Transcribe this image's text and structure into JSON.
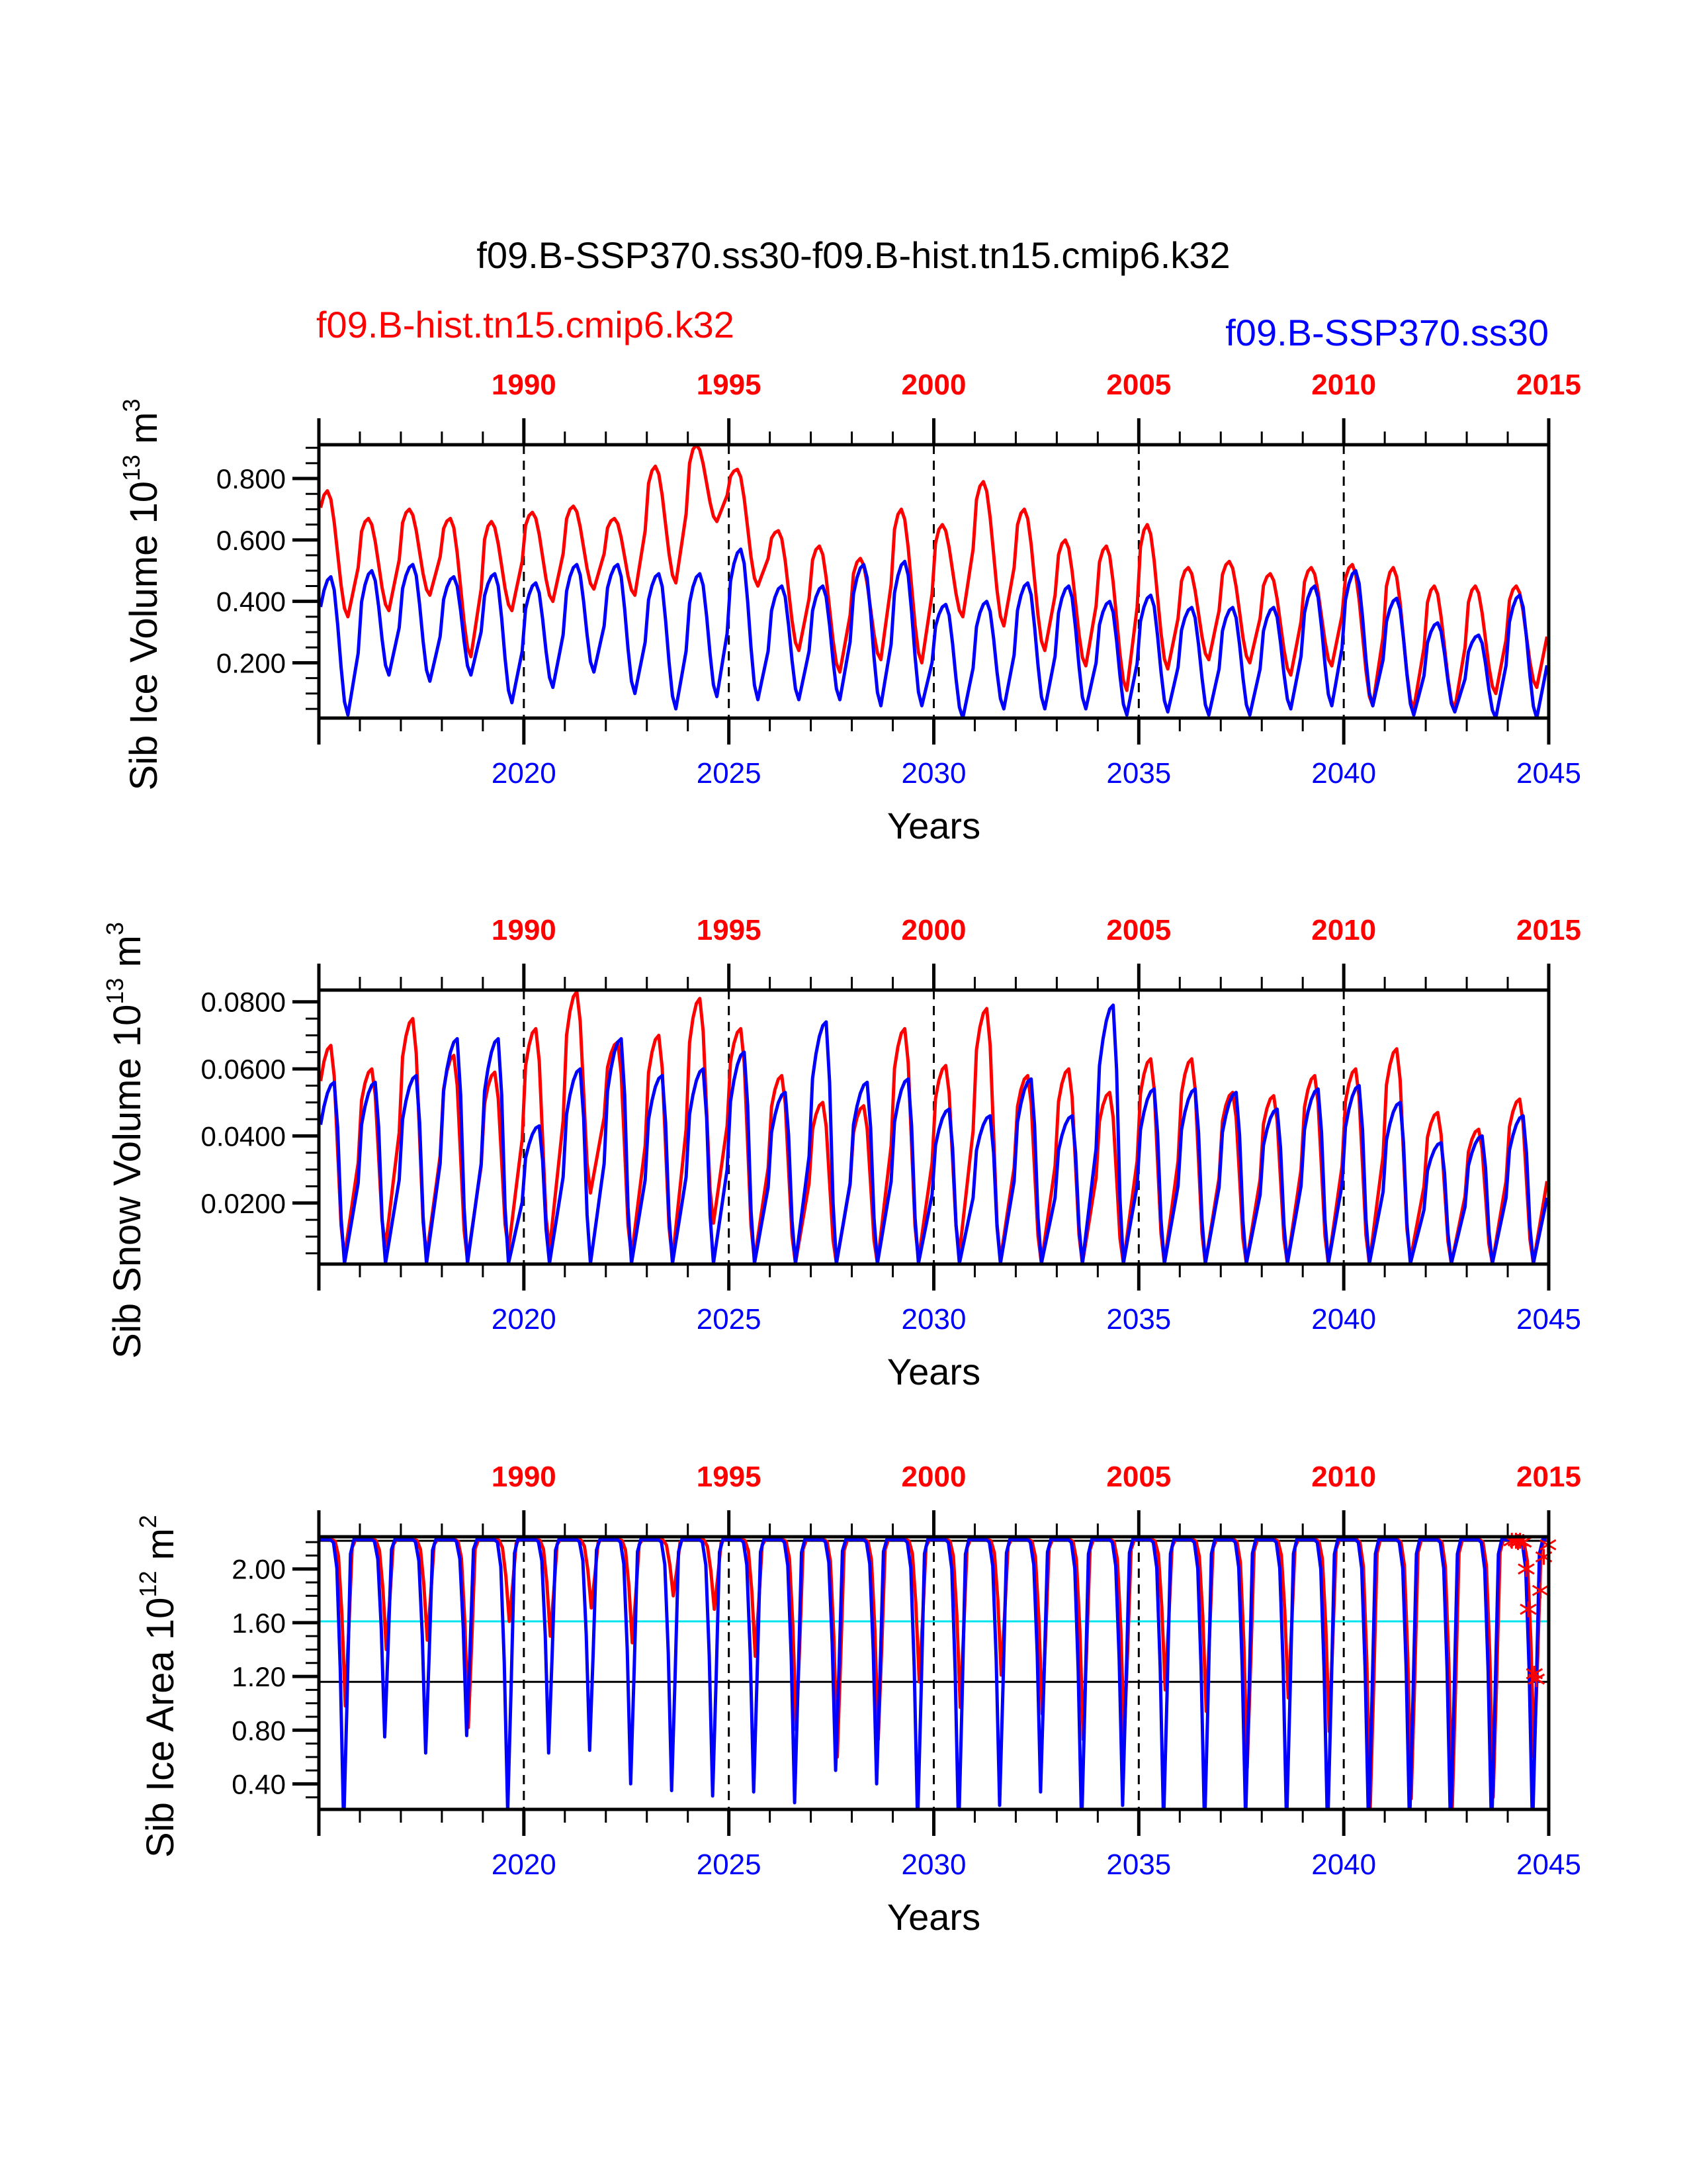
{
  "chart_data": {
    "type": "line",
    "title": "f09.B-SSP370.ss30-f09.B-hist.tn15.cmip6.k32",
    "legend": [
      {
        "name": "f09.B-hist.tn15.cmip6.k32",
        "color": "#ff0000",
        "placement": "top-left"
      },
      {
        "name": "f09.B-SSP370.ss30",
        "color": "#0000ff",
        "placement": "top-right"
      }
    ],
    "x_bottom": {
      "label": "Years",
      "range": [
        2015,
        2045
      ],
      "ticks": [
        "2020",
        "2025",
        "2030",
        "2035",
        "2040",
        "2045"
      ],
      "color": "#0000ff"
    },
    "x_top": {
      "range": [
        1985,
        2015
      ],
      "ticks": [
        "1990",
        "1995",
        "2000",
        "2005",
        "2010",
        "2015"
      ],
      "color": "#ff0000"
    },
    "panels": [
      {
        "id": "ice-volume",
        "ylabel": "Sib Ice Volume 10",
        "ylabel_exp": "13",
        "ylabel_unit": " m",
        "ylabel_unit_exp": "3",
        "ylim": [
          0.02,
          0.91
        ],
        "yticks": [
          "0.800",
          "0.600",
          "0.400",
          "0.200"
        ],
        "ytick_values": [
          0.8,
          0.6,
          0.4,
          0.2
        ],
        "yminor_step": 0.05,
        "hlines": [],
        "series": [
          {
            "name": "f09.B-hist.tn15.cmip6.k32",
            "color": "#ff0000",
            "peaks": [
              0.76,
              0.67,
              0.7,
              0.67,
              0.66,
              0.69,
              0.71,
              0.67,
              0.84,
              0.91,
              0.83,
              0.63,
              0.58,
              0.54,
              0.7,
              0.65,
              0.79,
              0.7,
              0.6,
              0.58,
              0.65,
              0.51,
              0.53,
              0.49,
              0.51,
              0.52,
              0.51,
              0.45,
              0.45,
              0.45
            ],
            "troughs": [
              0.35,
              0.37,
              0.42,
              0.22,
              0.37,
              0.4,
              0.44,
              0.42,
              0.46,
              0.66,
              0.45,
              0.24,
              0.17,
              0.21,
              0.2,
              0.35,
              0.32,
              0.24,
              0.19,
              0.11,
              0.18,
              0.21,
              0.2,
              0.16,
              0.19,
              0.06,
              0.05,
              0.05,
              0.1,
              0.12
            ]
          },
          {
            "name": "f09.B-SSP370.ss30",
            "color": "#0000ff",
            "peaks": [
              0.48,
              0.5,
              0.52,
              0.48,
              0.49,
              0.46,
              0.52,
              0.52,
              0.49,
              0.49,
              0.57,
              0.45,
              0.45,
              0.52,
              0.53,
              0.39,
              0.4,
              0.46,
              0.45,
              0.4,
              0.42,
              0.38,
              0.38,
              0.38,
              0.45,
              0.5,
              0.41,
              0.33,
              0.29,
              0.42
            ],
            "troughs": [
              0.03,
              0.16,
              0.14,
              0.16,
              0.07,
              0.12,
              0.17,
              0.1,
              0.05,
              0.09,
              0.08,
              0.08,
              0.08,
              0.06,
              0.06,
              0.02,
              0.05,
              0.05,
              0.05,
              0.03,
              0.04,
              0.03,
              0.03,
              0.05,
              0.06,
              0.06,
              0.03,
              0.04,
              0.02,
              0.02
            ]
          }
        ]
      },
      {
        "id": "snow-volume",
        "ylabel": "Sib Snow Volume 10",
        "ylabel_exp": "13",
        "ylabel_unit": " m",
        "ylabel_unit_exp": "3",
        "ylim": [
          0.0018,
          0.0835
        ],
        "yticks": [
          "0.0800",
          "0.0600",
          "0.0400",
          "0.0200"
        ],
        "ytick_values": [
          0.08,
          0.06,
          0.04,
          0.02
        ],
        "yminor_step": 0.005,
        "hlines": [],
        "series": [
          {
            "name": "f09.B-hist.tn15.cmip6.k32",
            "color": "#ff0000",
            "peaks": [
              0.067,
              0.06,
              0.075,
              0.064,
              0.059,
              0.072,
              0.083,
              0.068,
              0.07,
              0.081,
              0.072,
              0.058,
              0.05,
              0.049,
              0.072,
              0.061,
              0.078,
              0.058,
              0.06,
              0.053,
              0.063,
              0.063,
              0.053,
              0.052,
              0.058,
              0.06,
              0.066,
              0.047,
              0.042,
              0.051
            ],
            "troughs": [
              0.004,
              0.007,
              0.004,
              0.003,
              0.006,
              0.006,
              0.023,
              0.004,
              0.003,
              0.014,
              0.003,
              0.002,
              0.002,
              0.002,
              0.003,
              0.005,
              0.003,
              0.002,
              0.002,
              0.002,
              0.002,
              0.002,
              0.002,
              0.002,
              0.002,
              0.002,
              0.003,
              0.002,
              0.002,
              0.002
            ]
          },
          {
            "name": "f09.B-SSP370.ss30",
            "color": "#0000ff",
            "peaks": [
              0.056,
              0.056,
              0.058,
              0.069,
              0.069,
              0.043,
              0.06,
              0.069,
              0.058,
              0.06,
              0.065,
              0.053,
              0.074,
              0.056,
              0.057,
              0.048,
              0.046,
              0.057,
              0.046,
              0.079,
              0.054,
              0.054,
              0.053,
              0.048,
              0.054,
              0.055,
              0.05,
              0.038,
              0.04,
              0.046
            ],
            "troughs": [
              0.002,
              0.002,
              0.002,
              0.002,
              0.002,
              0.002,
              0.002,
              0.002,
              0.002,
              0.002,
              0.002,
              0.002,
              0.002,
              0.002,
              0.002,
              0.002,
              0.002,
              0.002,
              0.002,
              0.002,
              0.002,
              0.002,
              0.002,
              0.002,
              0.002,
              0.002,
              0.002,
              0.002,
              0.002,
              0.002
            ]
          }
        ]
      },
      {
        "id": "ice-area",
        "ylabel": "Sib Ice Area 10",
        "ylabel_exp": "12",
        "ylabel_unit": " m",
        "ylabel_unit_exp": "2",
        "ylim": [
          0.21,
          2.24
        ],
        "yticks": [
          "2.00",
          "1.60",
          "1.20",
          "0.80",
          "0.40"
        ],
        "ytick_values": [
          2.0,
          1.6,
          1.2,
          0.8,
          0.4
        ],
        "yminor_step": 0.1,
        "hlines": [
          {
            "value": 2.21,
            "color": "#000000"
          },
          {
            "value": 1.61,
            "color": "#00e5ee"
          },
          {
            "value": 1.16,
            "color": "#000000"
          }
        ],
        "series": [
          {
            "name": "f09.B-hist.tn15.cmip6.k32",
            "color": "#ff0000",
            "peak": 2.22,
            "troughs": [
              0.98,
              1.4,
              1.47,
              0.82,
              1.61,
              1.5,
              1.71,
              1.45,
              1.8,
              1.7,
              1.35,
              0.8,
              0.6,
              0.73,
              1.16,
              0.97,
              1.21,
              0.92,
              0.73,
              0.73,
              1.1,
              0.94,
              0.52,
              1.04,
              0.79,
              0.21,
              0.29,
              0.21,
              0.3,
              0.6
            ]
          },
          {
            "name": "f09.B-SSP370.ss30",
            "color": "#0000ff",
            "peak": 2.22,
            "troughs": [
              0.08,
              0.75,
              0.63,
              0.76,
              0.19,
              0.63,
              0.65,
              0.4,
              0.35,
              0.31,
              0.34,
              0.26,
              0.5,
              0.4,
              0.1,
              0.03,
              0.24,
              0.34,
              0.07,
              0.24,
              0.1,
              0.06,
              0.13,
              0.09,
              0.03,
              0.06,
              0.08,
              0.05,
              0.03,
              0.05
            ]
          }
        ],
        "markers": {
          "symbol": "asterisk",
          "color": "#ff0000",
          "points": [
            [
              2044.1,
              2.21
            ],
            [
              2044.2,
              2.21
            ],
            [
              2044.25,
              2.2
            ],
            [
              2044.3,
              2.21
            ],
            [
              2044.38,
              2.2
            ],
            [
              2044.45,
              2.0
            ],
            [
              2044.5,
              1.7
            ],
            [
              2044.65,
              1.22
            ],
            [
              2044.7,
              1.18
            ],
            [
              2044.8,
              1.84
            ],
            [
              2044.88,
              2.09
            ],
            [
              2044.98,
              2.18
            ]
          ]
        }
      }
    ]
  }
}
